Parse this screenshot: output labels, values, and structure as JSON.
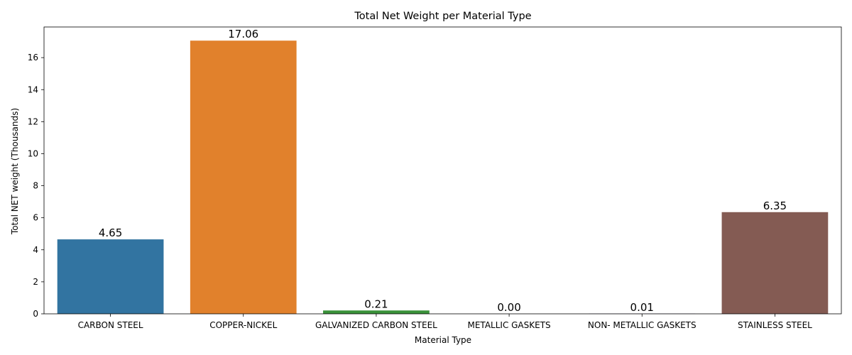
{
  "chart_data": {
    "type": "bar",
    "title": "Total Net Weight per Material Type",
    "xlabel": "Material Type",
    "ylabel": "Total NET weight (Thousands)",
    "categories": [
      "CARBON STEEL",
      "COPPER-NICKEL",
      "GALVANIZED CARBON STEEL",
      "METALLIC GASKETS",
      "NON- METALLIC GASKETS",
      "STAINLESS STEEL"
    ],
    "values": [
      4.65,
      17.06,
      0.21,
      0.0,
      0.01,
      6.35
    ],
    "data_labels": [
      "4.65",
      "17.06",
      "0.21",
      "0.00",
      "0.01",
      "6.35"
    ],
    "colors": [
      "#3274a1",
      "#e1812c",
      "#3a923a",
      "#c03d3e",
      "#9372b2",
      "#845b53"
    ],
    "ylim": [
      0,
      17.913
    ],
    "yticks": [
      0,
      2,
      4,
      6,
      8,
      10,
      12,
      14,
      16
    ],
    "grid": false,
    "legend": "none"
  }
}
